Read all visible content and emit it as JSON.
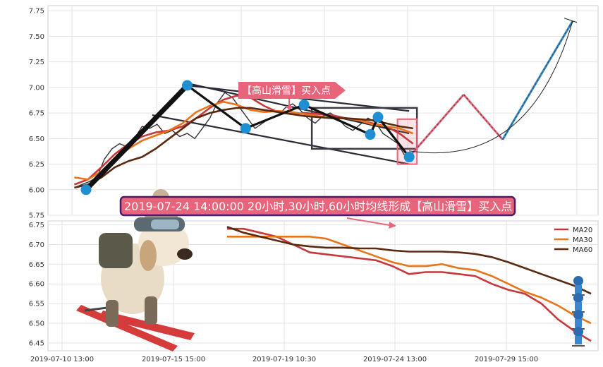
{
  "chart_data": [
    {
      "type": "line",
      "panel": "price",
      "ylim": [
        5.75,
        7.8
      ],
      "yticks": [
        "5.75",
        "6.00",
        "6.25",
        "6.50",
        "6.75",
        "7.00",
        "7.25",
        "7.50",
        "7.75"
      ],
      "grid": true,
      "price_series": [
        6.02,
        6.05,
        6.08,
        6.12,
        6.3,
        6.4,
        6.45,
        6.42,
        6.5,
        6.62,
        6.6,
        6.64,
        6.55,
        6.58,
        6.52,
        6.55,
        6.5,
        6.6,
        6.7,
        6.85,
        6.95,
        6.9,
        6.8,
        6.7,
        6.6,
        6.65,
        6.7,
        6.72,
        6.8,
        6.84,
        6.78,
        6.7,
        6.65,
        6.72,
        6.75,
        6.7,
        6.62,
        6.58,
        6.64,
        6.7,
        6.66,
        6.55,
        6.5,
        6.45,
        6.32,
        6.34
      ],
      "ma_series": [
        {
          "values": [
            6.05,
            6.1,
            6.22,
            6.35,
            6.45,
            6.52,
            6.56,
            6.58,
            6.62,
            6.7,
            6.8,
            6.88,
            6.92,
            6.9,
            6.82,
            6.76,
            6.74,
            6.75,
            6.74,
            6.73,
            6.7,
            6.68,
            6.65,
            6.62,
            6.55,
            6.45
          ]
        },
        {
          "values": [
            6.12,
            6.1,
            6.18,
            6.3,
            6.4,
            6.48,
            6.53,
            6.58,
            6.65,
            6.76,
            6.82,
            6.86,
            6.83,
            6.78,
            6.76,
            6.77,
            6.76,
            6.74,
            6.72,
            6.7,
            6.7,
            6.68,
            6.64,
            6.62,
            6.6,
            6.55
          ]
        },
        {
          "values": [
            6.02,
            6.05,
            6.12,
            6.22,
            6.28,
            6.32,
            6.4,
            6.5,
            6.6,
            6.7,
            6.75,
            6.78,
            6.8,
            6.8,
            6.78,
            6.76,
            6.74,
            6.72,
            6.71,
            6.7,
            6.7,
            6.69,
            6.68,
            6.65,
            6.62,
            6.6
          ]
        }
      ],
      "zigzag_points": [
        [
          0,
          6.0
        ],
        [
          2.6,
          7.02
        ],
        [
          4.1,
          6.6
        ],
        [
          5.6,
          6.83
        ],
        [
          7.3,
          6.54
        ],
        [
          7.5,
          6.71
        ],
        [
          8.3,
          6.32
        ]
      ],
      "projection_points": [
        [
          8.3,
          6.32
        ],
        [
          9.7,
          6.93
        ],
        [
          10.7,
          6.49
        ],
        [
          12.5,
          7.65
        ]
      ],
      "annotation": "【高山滑雪】买入点",
      "banner": "2019-07-24 14:00:00 20小时,30小时,60小时均线形成【高山滑雪】买入点",
      "colors": {
        "price": "#333333",
        "zigzag": "#111111",
        "marker": "#1f8fd4",
        "pink": "#e8647a",
        "box": "#3a3a44",
        "projection_up": "#2f88c8"
      }
    },
    {
      "type": "line",
      "panel": "moving-averages",
      "ylim": [
        6.43,
        6.76
      ],
      "yticks": [
        "6.45",
        "6.50",
        "6.55",
        "6.60",
        "6.65",
        "6.70",
        "6.75"
      ],
      "xticks": [
        "2019-07-10 13:00",
        "2019-07-15 15:00",
        "2019-07-19 10:30",
        "2019-07-24 13:00",
        "2019-07-29 15:00"
      ],
      "grid": true,
      "series": [
        {
          "name": "MA20",
          "color": "#c8383a",
          "values": [
            6.74,
            6.74,
            6.73,
            6.72,
            6.7,
            6.68,
            6.675,
            6.67,
            6.665,
            6.66,
            6.645,
            6.625,
            6.63,
            6.63,
            6.625,
            6.62,
            6.6,
            6.585,
            6.575,
            6.55,
            6.51,
            6.48,
            6.455
          ]
        },
        {
          "name": "MA30",
          "color": "#e8751a",
          "values": [
            6.72,
            6.72,
            6.72,
            6.72,
            6.72,
            6.72,
            6.715,
            6.7,
            6.685,
            6.67,
            6.655,
            6.645,
            6.645,
            6.65,
            6.64,
            6.635,
            6.62,
            6.6,
            6.58,
            6.565,
            6.545,
            6.52,
            6.5
          ]
        },
        {
          "name": "MA60",
          "color": "#5a2a10",
          "values": [
            6.745,
            6.73,
            6.72,
            6.71,
            6.7,
            6.695,
            6.692,
            6.692,
            6.69,
            6.69,
            6.685,
            6.682,
            6.682,
            6.682,
            6.68,
            6.676,
            6.668,
            6.655,
            6.64,
            6.625,
            6.61,
            6.595,
            6.575
          ]
        }
      ]
    }
  ]
}
